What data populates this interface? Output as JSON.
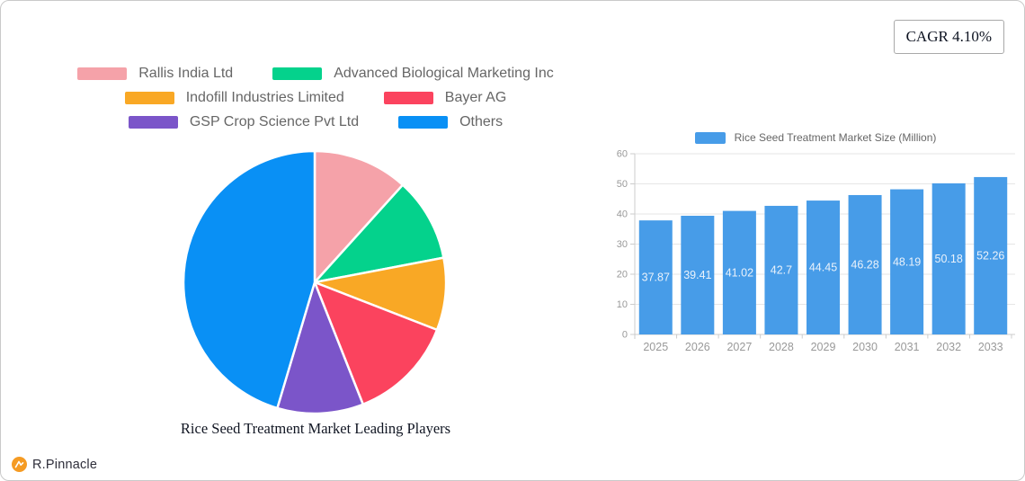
{
  "card": {
    "cagr_label": "CAGR 4.10%",
    "brand_name": "R.Pinnacle"
  },
  "chart_data": [
    {
      "type": "pie",
      "title": "Rice Seed Treatment Market Leading Players",
      "legend_position": "top",
      "value_unit": "percent-share (estimated from slice angles)",
      "slices": [
        {
          "label": "Rallis India Ltd",
          "value": 11.7,
          "color": "#F5A2A9"
        },
        {
          "label": "Advanced Biological Marketing Inc",
          "value": 10.3,
          "color": "#04D28C"
        },
        {
          "label": "Indofill Industries Limited",
          "value": 8.9,
          "color": "#F9A825"
        },
        {
          "label": "Bayer AG",
          "value": 13.1,
          "color": "#FB435E"
        },
        {
          "label": "GSP Crop Science Pvt Ltd",
          "value": 10.6,
          "color": "#7B55C9"
        },
        {
          "label": "Others",
          "value": 45.4,
          "color": "#0990F5"
        }
      ]
    },
    {
      "type": "bar",
      "legend_label": "Rice Seed Treatment Market Size (Million)",
      "categories": [
        "2025",
        "2026",
        "2027",
        "2028",
        "2029",
        "2030",
        "2031",
        "2032",
        "2033"
      ],
      "values": [
        37.87,
        39.41,
        41.02,
        42.7,
        44.45,
        46.28,
        48.19,
        50.18,
        52.26
      ],
      "value_labels": [
        "37.87",
        "39.41",
        "41.02",
        "42.7",
        "44.45",
        "46.28",
        "48.19",
        "50.18",
        "52.26"
      ],
      "bar_color": "#479CE8",
      "value_label_color": "#EAF2FB",
      "axis_label_color": "#999999",
      "grid_color": "#e6e6e6",
      "axis_line_color": "#cccccc",
      "ylim": [
        0,
        60
      ],
      "yticks": [
        0,
        10,
        20,
        30,
        40,
        50,
        60
      ],
      "grid": true,
      "legend_position": "top"
    }
  ]
}
